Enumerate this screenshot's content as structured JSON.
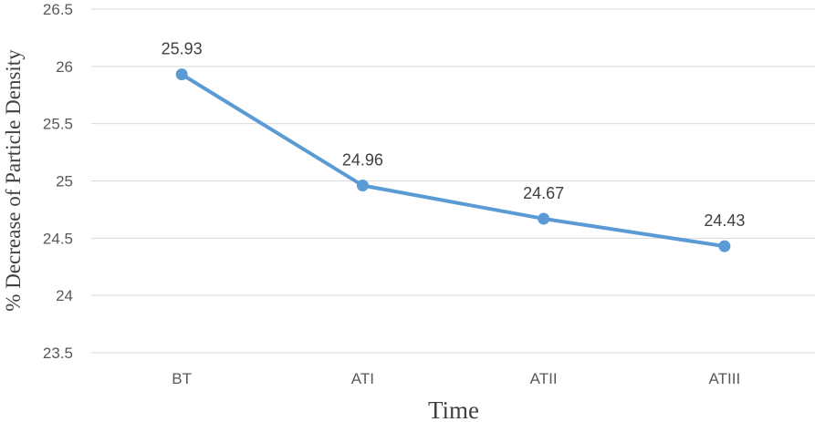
{
  "chart_data": {
    "type": "line",
    "title": "",
    "xlabel": "Time",
    "ylabel": "% Decrease of Particle Density",
    "categories": [
      "BT",
      "ATI",
      "ATII",
      "ATIII"
    ],
    "series": [
      {
        "values": [
          25.93,
          24.96,
          24.67,
          24.43
        ],
        "data_labels": [
          "25.93",
          "24.96",
          "24.67",
          "24.43"
        ],
        "color": "#5b9bd5",
        "marker": "circle"
      }
    ],
    "ylim": [
      23.5,
      26.5
    ],
    "y_ticks": [
      23.5,
      24,
      24.5,
      25,
      25.5,
      26,
      26.5
    ],
    "y_tick_labels": [
      "23.5",
      "24",
      "24.5",
      "25",
      "25.5",
      "26",
      "26.5"
    ],
    "grid": true,
    "grid_color": "#d9d9d9",
    "legend": "none"
  }
}
